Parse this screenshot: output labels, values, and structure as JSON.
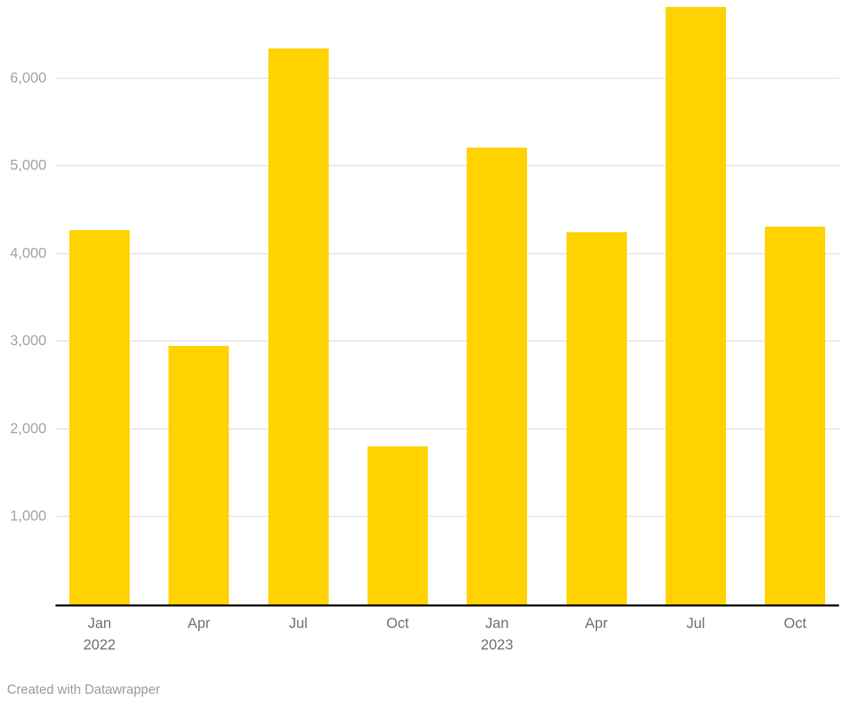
{
  "chart_data": {
    "type": "bar",
    "title": "",
    "xlabel": "",
    "ylabel": "",
    "categories": [
      "Jan 2022",
      "Apr 2022",
      "Jul 2022",
      "Oct 2022",
      "Jan 2023",
      "Apr 2023",
      "Jul 2023",
      "Oct 2023"
    ],
    "x_tick_lines": [
      [
        "Jan",
        "2022"
      ],
      [
        "Apr"
      ],
      [
        "Jul"
      ],
      [
        "Oct"
      ],
      [
        "Jan",
        "2023"
      ],
      [
        "Apr"
      ],
      [
        "Jul"
      ],
      [
        "Oct"
      ]
    ],
    "values": [
      4270,
      2950,
      6340,
      1800,
      5210,
      4240,
      6810,
      4310
    ],
    "ylim": [
      0,
      6890
    ],
    "y_ticks": [
      1000,
      2000,
      3000,
      4000,
      5000,
      6000
    ],
    "y_tick_labels": [
      "1,000",
      "2,000",
      "3,000",
      "4,000",
      "5,000",
      "6,000"
    ],
    "grid": true,
    "legend": "none",
    "colors": {
      "bar": "#ffd200",
      "gridline": "#e7e7e7",
      "axis_line": "#0b0b0b",
      "y_tick_text": "#a3a3a3",
      "x_tick_text": "#6f6f6f",
      "credit_text": "#9b9b9b"
    }
  },
  "footer": {
    "credit": "Created with Datawrapper"
  }
}
